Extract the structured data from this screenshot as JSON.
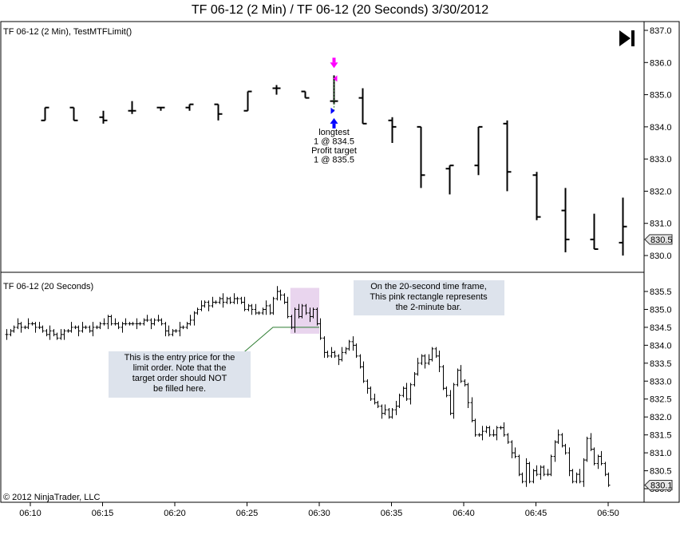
{
  "window_title": "TF 06-12 (2 Min) / TF 06-12 (20 Seconds)  3/30/2012",
  "copyright": "© 2012 NinjaTrader, LLC",
  "icons": {
    "play_to_end": "skip-to-end-icon"
  },
  "colors": {
    "bar": "#000000",
    "entry_arrow": "#0000ff",
    "exit_arrow": "#ff00ff",
    "entry_line": "#2e7d32",
    "callout_bg": "#dde3ec",
    "pink_rect": "#e9d5ee"
  },
  "chart_data": [
    {
      "type": "ohlc",
      "panel": "top",
      "title": "TF 06-12 (2 Min), TestMTFLimit()",
      "ylim": [
        829.6,
        837.2
      ],
      "yticks": [
        "837.0",
        "836.0",
        "835.0",
        "834.0",
        "833.0",
        "832.0",
        "831.0",
        "830.0"
      ],
      "last_price_label": "830.5",
      "last_price": 830.5,
      "bars": [
        {
          "t": "06:10",
          "o": 834.2,
          "h": 834.6,
          "l": 834.2,
          "c": 834.6
        },
        {
          "t": "06:12",
          "o": 834.6,
          "h": 834.6,
          "l": 834.2,
          "c": 834.2
        },
        {
          "t": "06:14",
          "o": 834.3,
          "h": 834.5,
          "l": 834.1,
          "c": 834.2
        },
        {
          "t": "06:16",
          "o": 834.5,
          "h": 834.8,
          "l": 834.4,
          "c": 834.5
        },
        {
          "t": "06:18",
          "o": 834.6,
          "h": 834.6,
          "l": 834.5,
          "c": 834.6
        },
        {
          "t": "06:20",
          "o": 834.6,
          "h": 834.7,
          "l": 834.5,
          "c": 834.7
        },
        {
          "t": "06:22",
          "o": 834.7,
          "h": 834.7,
          "l": 834.2,
          "c": 834.4
        },
        {
          "t": "06:24",
          "o": 834.5,
          "h": 835.1,
          "l": 834.5,
          "c": 835.1
        },
        {
          "t": "06:26",
          "o": 835.2,
          "h": 835.3,
          "l": 835.0,
          "c": 835.2
        },
        {
          "t": "06:28",
          "o": 835.1,
          "h": 835.1,
          "l": 834.9,
          "c": 834.9
        },
        {
          "t": "06:30",
          "o": 834.8,
          "h": 835.6,
          "l": 834.7,
          "c": 834.8
        },
        {
          "t": "06:32",
          "o": 834.9,
          "h": 835.2,
          "l": 834.1,
          "c": 834.1
        },
        {
          "t": "06:34",
          "o": 834.2,
          "h": 834.3,
          "l": 833.5,
          "c": 834.0
        },
        {
          "t": "06:36",
          "o": 834.0,
          "h": 834.0,
          "l": 832.1,
          "c": 832.5
        },
        {
          "t": "06:38",
          "o": 832.7,
          "h": 832.8,
          "l": 831.9,
          "c": 832.8
        },
        {
          "t": "06:40",
          "o": 832.8,
          "h": 834.0,
          "l": 832.5,
          "c": 834.0
        },
        {
          "t": "06:42",
          "o": 834.1,
          "h": 834.2,
          "l": 832.0,
          "c": 832.6
        },
        {
          "t": "06:44",
          "o": 832.5,
          "h": 832.6,
          "l": 831.1,
          "c": 831.2
        },
        {
          "t": "06:46",
          "o": 831.4,
          "h": 832.1,
          "l": 830.1,
          "c": 830.5
        },
        {
          "t": "06:48",
          "o": 830.5,
          "h": 831.3,
          "l": 830.2,
          "c": 830.2
        },
        {
          "t": "06:50",
          "o": 830.4,
          "h": 831.8,
          "l": 830.0,
          "c": 830.9
        }
      ],
      "markers": [
        {
          "t": "06:30",
          "type": "entry",
          "price": 834.5
        },
        {
          "t": "06:30",
          "type": "exit",
          "price": 835.5
        }
      ],
      "annotation_lines": [
        "longtest",
        "1 @ 834.5",
        "Profit target",
        "1 @ 835.5"
      ]
    },
    {
      "type": "ohlc",
      "panel": "bottom",
      "title": "TF 06-12 (20 Seconds)",
      "ylim": [
        829.9,
        835.8
      ],
      "yticks": [
        "835.5",
        "835.0",
        "834.5",
        "834.0",
        "833.5",
        "833.0",
        "832.5",
        "832.0",
        "831.5",
        "831.0",
        "830.5",
        "830.0"
      ],
      "last_price_label": "830.1",
      "last_price": 830.1,
      "closes": [
        834.3,
        834.4,
        834.5,
        834.6,
        834.5,
        834.5,
        834.6,
        834.6,
        834.5,
        834.5,
        834.4,
        834.3,
        834.4,
        834.3,
        834.2,
        834.3,
        834.4,
        834.4,
        834.5,
        834.5,
        834.4,
        834.5,
        834.5,
        834.4,
        834.5,
        834.5,
        834.6,
        834.6,
        834.8,
        834.6,
        834.6,
        834.5,
        834.6,
        834.6,
        834.6,
        834.6,
        834.6,
        834.6,
        834.7,
        834.7,
        834.6,
        834.7,
        834.7,
        834.6,
        834.4,
        834.3,
        834.4,
        834.4,
        834.5,
        834.5,
        834.6,
        834.7,
        834.9,
        835.0,
        835.1,
        835.2,
        835.1,
        835.2,
        835.2,
        835.3,
        835.2,
        835.3,
        835.2,
        835.3,
        835.3,
        835.2,
        835.0,
        835.1,
        835.0,
        834.9,
        834.9,
        835.0,
        835.1,
        834.9,
        835.3,
        835.5,
        835.4,
        835.2,
        834.8,
        834.5,
        835.0,
        834.8,
        835.1,
        834.9,
        834.8,
        835.0,
        834.6,
        834.2,
        833.8,
        833.7,
        833.8,
        833.7,
        833.6,
        833.8,
        833.9,
        834.1,
        834.0,
        833.7,
        833.4,
        833.0,
        832.8,
        832.5,
        832.4,
        832.3,
        832.1,
        832.2,
        832.0,
        832.2,
        832.3,
        832.6,
        832.8,
        832.5,
        832.9,
        833.2,
        833.5,
        833.7,
        833.5,
        833.6,
        833.9,
        833.7,
        833.4,
        832.8,
        832.6,
        832.1,
        832.9,
        833.3,
        833.0,
        832.9,
        832.4,
        831.9,
        831.5,
        831.5,
        831.6,
        831.7,
        831.5,
        831.5,
        831.7,
        831.7,
        831.5,
        831.3,
        831.0,
        830.9,
        830.4,
        830.2,
        830.7,
        830.2,
        830.5,
        830.4,
        830.6,
        830.4,
        830.4,
        830.9,
        831.3,
        831.5,
        831.2,
        831.0,
        830.5,
        830.2,
        830.4,
        830.2,
        830.8,
        831.4,
        831.1,
        830.7,
        830.9,
        830.7,
        830.4,
        830.1
      ]
    }
  ],
  "xaxis": {
    "ticks": [
      "06:10",
      "06:15",
      "06:20",
      "06:25",
      "06:30",
      "06:35",
      "06:40",
      "06:45",
      "06:50"
    ]
  },
  "callouts": {
    "entry_price": {
      "lines": [
        "This is the entry price for the",
        "limit order. Note that the",
        "target order should NOT",
        "be filled here."
      ],
      "price": 834.5
    },
    "pink_rect": {
      "lines": [
        "On the 20-second time frame,",
        "This pink rectangle represents",
        "the 2-minute bar."
      ]
    }
  }
}
